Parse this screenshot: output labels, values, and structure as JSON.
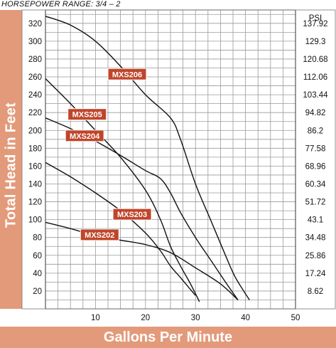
{
  "header": {
    "hp_range": "HORSEPOWER RANGE: 3/4 – 2"
  },
  "chart_data": {
    "type": "line",
    "title": "",
    "xlabel": "Gallons Per Minute",
    "ylabel": "Total Head in Feet",
    "y2label": "PSI",
    "xlim": [
      0,
      50
    ],
    "ylim": [
      0,
      335
    ],
    "x_ticks": [
      10,
      20,
      30,
      40,
      50
    ],
    "y_ticks": [
      20,
      40,
      60,
      80,
      100,
      120,
      140,
      160,
      180,
      200,
      220,
      240,
      260,
      280,
      300,
      320
    ],
    "y_ticks_labels": [
      "20",
      "40",
      "60",
      "80",
      "100",
      "120",
      "140",
      "160",
      "180",
      "200",
      "220",
      "240",
      "260",
      "280",
      "300",
      "320"
    ],
    "psi_ticks": [
      {
        "feet": 20,
        "label": "8.62"
      },
      {
        "feet": 40,
        "label": "17.24"
      },
      {
        "feet": 60,
        "label": "25.86"
      },
      {
        "feet": 80,
        "label": "34.48"
      },
      {
        "feet": 100,
        "label": "43.1"
      },
      {
        "feet": 120,
        "label": "51.72"
      },
      {
        "feet": 140,
        "label": "60.34"
      },
      {
        "feet": 160,
        "label": "68.96"
      },
      {
        "feet": 180,
        "label": "77.58"
      },
      {
        "feet": 200,
        "label": "86.2"
      },
      {
        "feet": 220,
        "label": "94.82"
      },
      {
        "feet": 240,
        "label": "103.44"
      },
      {
        "feet": 260,
        "label": "112.06"
      },
      {
        "feet": 280,
        "label": "120.68"
      },
      {
        "feet": 300,
        "label": "129.3"
      },
      {
        "feet": 320,
        "label": "137.92"
      }
    ],
    "grid": true,
    "colors": {
      "band": "#e39a7a",
      "tag": "#c0452a",
      "line": "#111111",
      "grid": "#9a9a9a"
    },
    "series": [
      {
        "name": "MXS206",
        "x": [
          0,
          5,
          10,
          15,
          20,
          25,
          27,
          30,
          33,
          36,
          38,
          40.8
        ],
        "y": [
          328,
          318,
          300,
          272,
          240,
          214,
          190,
          140,
          100,
          60,
          35,
          10
        ]
      },
      {
        "name": "MXS205",
        "x": [
          0,
          5,
          10,
          15,
          20,
          23,
          25,
          27,
          29,
          30.8
        ],
        "y": [
          258,
          230,
          200,
          170,
          133,
          100,
          70,
          48,
          28,
          8
        ]
      },
      {
        "name": "MXS204",
        "x": [
          0,
          5,
          10,
          15,
          20,
          23,
          25,
          27,
          30,
          33,
          36,
          38.5
        ],
        "y": [
          214,
          202,
          188,
          172,
          155,
          146,
          130,
          108,
          80,
          55,
          30,
          10
        ]
      },
      {
        "name": "MXS203",
        "x": [
          0,
          5,
          10,
          15,
          20,
          23,
          25,
          27,
          30
        ],
        "y": [
          164,
          148,
          130,
          110,
          85,
          65,
          48,
          35,
          15
        ]
      },
      {
        "name": "MXS202",
        "x": [
          0,
          5,
          10,
          15,
          20,
          25,
          30,
          35,
          38.5
        ],
        "y": [
          97,
          90,
          82,
          77,
          72,
          63,
          46,
          28,
          10
        ]
      }
    ]
  }
}
